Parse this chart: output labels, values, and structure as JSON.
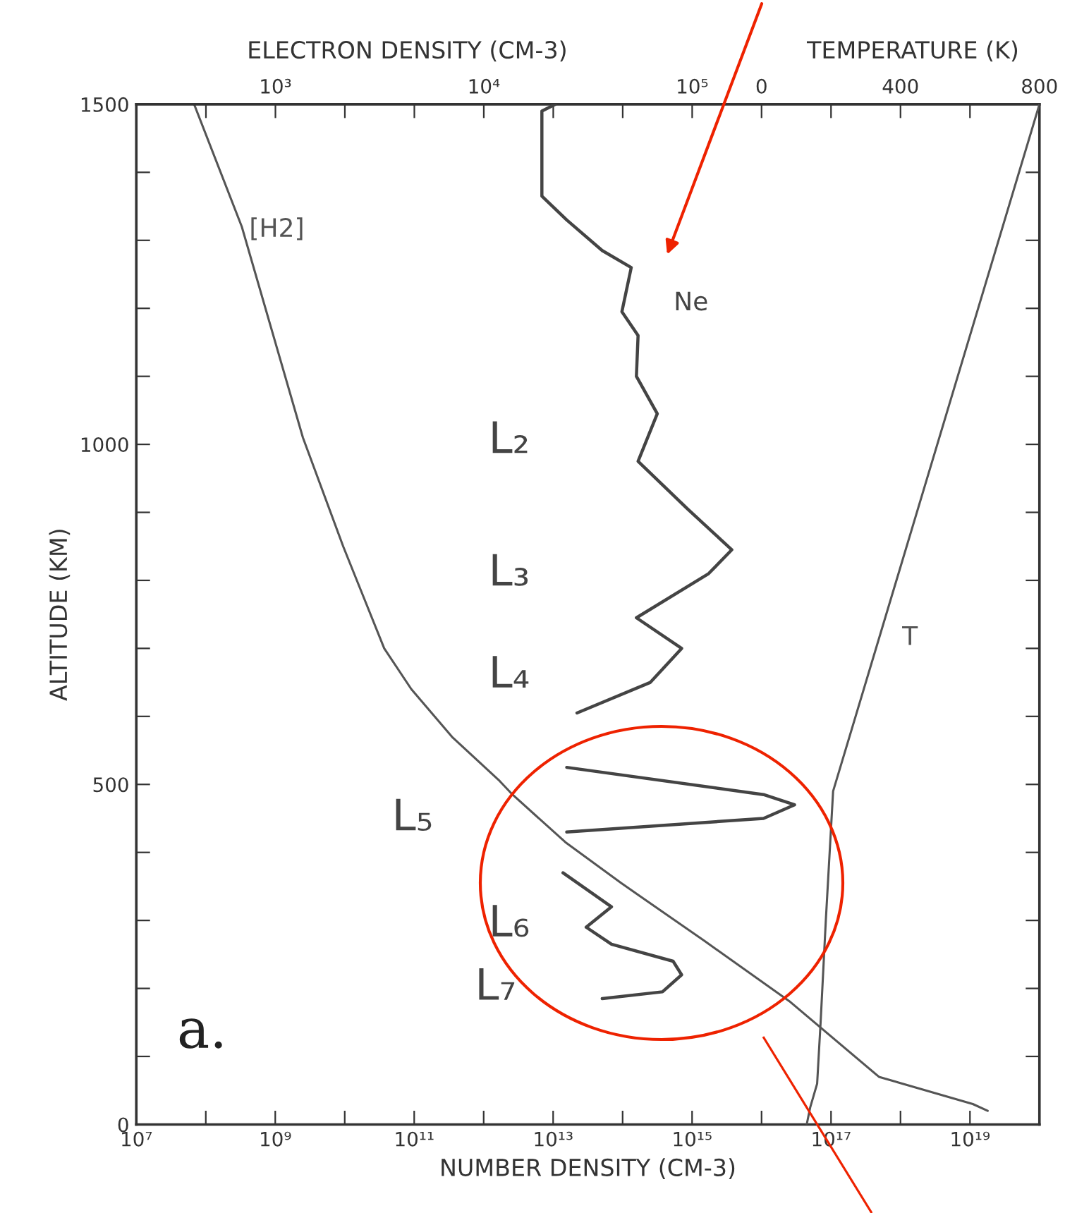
{
  "chart_data": [
    {
      "type": "line",
      "xlabel": "NUMBER DENSITY (CM-3)",
      "ylabel": "ALTITUDE (KM)",
      "log": "x",
      "xlim": [
        10000000.0,
        1e+20
      ],
      "xticks": [
        {
          "value": 10000000.0,
          "label": "10⁷"
        },
        {
          "value": 100000000.0,
          "label": null
        },
        {
          "value": 1000000000.0,
          "label": "10⁹"
        },
        {
          "value": 10000000000.0,
          "label": null
        },
        {
          "value": 100000000000.0,
          "label": "10¹¹"
        },
        {
          "value": 1000000000000.0,
          "label": null
        },
        {
          "value": 10000000000000.0,
          "label": "10¹³"
        },
        {
          "value": 100000000000000.0,
          "label": null
        },
        {
          "value": 1000000000000000.0,
          "label": "10¹⁵"
        },
        {
          "value": 1e+16,
          "label": null
        },
        {
          "value": 1e+17,
          "label": "10¹⁷"
        },
        {
          "value": 1e+18,
          "label": null
        },
        {
          "value": 1e+19,
          "label": "10¹⁹"
        }
      ],
      "ylim": [
        0,
        1500
      ],
      "yticks": [
        0,
        {
          "value": 100,
          "label": null
        },
        {
          "value": 200,
          "label": null
        },
        {
          "value": 300,
          "label": null
        },
        {
          "value": 400,
          "label": null
        },
        500,
        {
          "value": 600,
          "label": null
        },
        {
          "value": 700,
          "label": null
        },
        {
          "value": 800,
          "label": null
        },
        {
          "value": 900,
          "label": null
        },
        1000,
        {
          "value": 1100,
          "label": null
        },
        {
          "value": 1200,
          "label": null
        },
        {
          "value": 1300,
          "label": null
        },
        {
          "value": 1400,
          "label": null
        },
        1500
      ],
      "grid": false,
      "legend": false,
      "marker": "none",
      "line_style": "solid",
      "series": [
        {
          "name": "[H2]",
          "color": "#555555",
          "x": [
            68000000.0,
            330000000.0,
            2500000000.0,
            9500000000.0,
            37000000000.0,
            91000000000.0,
            350000000000.0,
            1700000000000.0,
            2600000000000.0,
            15000000000000.0,
            95000000000000.0,
            1500000000000000.0,
            2.6e+16,
            4.9e+17,
            1.1e+19,
            1.8e+19
          ],
          "values": [
            1500,
            1320,
            1010,
            850,
            700,
            640,
            570,
            505,
            485,
            415,
            355,
            270,
            180,
            70,
            30,
            20
          ]
        }
      ],
      "annotations": [
        "L₂",
        "L₃",
        "L₄",
        "L₅",
        "L₆",
        "L₇",
        "a."
      ]
    },
    {
      "type": "line",
      "xlabel": "ELECTRON DENSITY (CM-3)",
      "log": "x",
      "tick_labels": "x",
      "xlim": [
        215,
        4640000
      ],
      "xticks": [
        {
          "value": 464,
          "label": null
        },
        {
          "value": 1000,
          "label": "10³"
        },
        {
          "value": 2154,
          "label": null
        },
        {
          "value": 4642,
          "label": null
        },
        {
          "value": 10000,
          "label": "10⁴"
        },
        {
          "value": 21544,
          "label": null
        },
        {
          "value": 46416,
          "label": null
        },
        {
          "value": 100000,
          "label": "10⁵"
        }
      ],
      "ylim": [
        0,
        1500
      ],
      "grid": false,
      "legend": false,
      "marker": "none",
      "line_style": "solid",
      "series": [
        {
          "name": "Ne",
          "color": "#444444",
          "x": [
            22000,
            19000,
            19000,
            25000,
            37000,
            51000,
            46000,
            55000,
            54000,
            68000,
            55000,
            95000,
            155000,
            120000,
            54000,
            89000,
            63000,
            28000,
            null,
            25000,
            220000,
            310000,
            220000,
            25000,
            null,
            24000,
            41000,
            31000,
            41000,
            81000,
            89000,
            72000,
            37000
          ],
          "values": [
            1500,
            1490,
            1365,
            1330,
            1285,
            1260,
            1195,
            1160,
            1100,
            1045,
            975,
            905,
            845,
            810,
            745,
            700,
            650,
            605,
            null,
            525,
            485,
            470,
            450,
            430,
            null,
            370,
            320,
            290,
            265,
            240,
            220,
            195,
            185
          ]
        }
      ]
    },
    {
      "type": "line",
      "xlabel": "TEMPERATURE (K)",
      "tick_labels": "x",
      "xlim": [
        -1800,
        800
      ],
      "xticks": [
        0,
        {
          "value": 200,
          "label": null
        },
        400,
        {
          "value": 600,
          "label": null
        },
        800
      ],
      "ylim": [
        0,
        1500
      ],
      "grid": false,
      "legend": false,
      "marker": "none",
      "line_style": "solid",
      "series": [
        {
          "name": "T",
          "color": "#555555",
          "x": [
            800,
            206,
            185,
            170,
            160,
            140,
            130
          ],
          "values": [
            1500,
            490,
            300,
            150,
            60,
            25,
            0
          ]
        }
      ]
    }
  ]
}
